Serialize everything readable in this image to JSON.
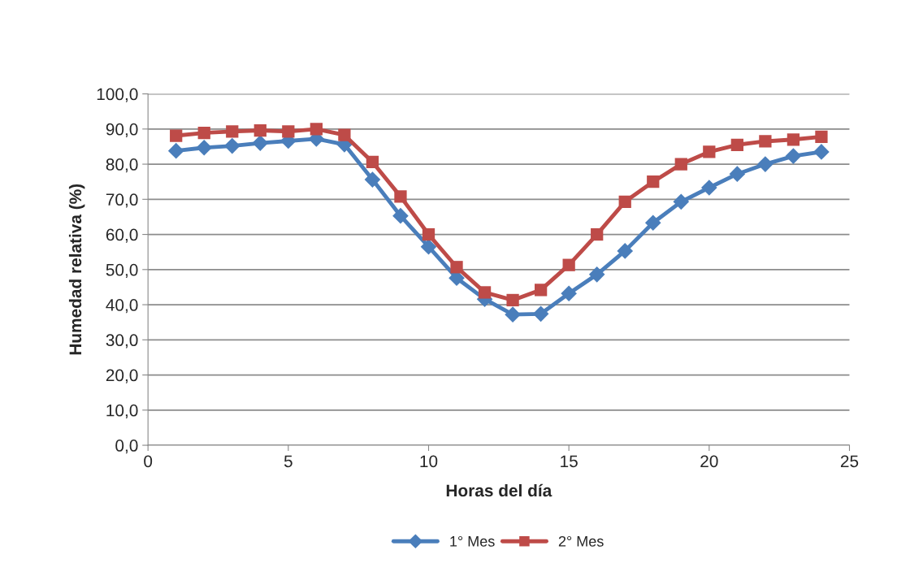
{
  "chart_data": {
    "type": "line",
    "xlabel": "Horas del día",
    "ylabel": "Humedad relativa (%)",
    "x": [
      1,
      2,
      3,
      4,
      5,
      6,
      7,
      8,
      9,
      10,
      11,
      12,
      13,
      14,
      15,
      16,
      17,
      18,
      19,
      20,
      21,
      22,
      23,
      24
    ],
    "series": [
      {
        "name": "1° Mes",
        "color": "#4a7ebb",
        "marker": "diamond",
        "values": [
          83.8,
          84.7,
          85.2,
          86.0,
          86.6,
          87.2,
          85.6,
          75.6,
          65.3,
          56.5,
          47.6,
          41.6,
          37.2,
          37.4,
          43.2,
          48.6,
          55.3,
          63.3,
          69.3,
          73.3,
          77.2,
          80.0,
          82.3,
          83.5
        ]
      },
      {
        "name": "2° Mes",
        "color": "#be4b48",
        "marker": "square",
        "values": [
          88.1,
          88.9,
          89.3,
          89.6,
          89.3,
          90.0,
          88.3,
          80.6,
          70.8,
          60.0,
          50.7,
          43.5,
          41.3,
          44.2,
          51.3,
          60.0,
          69.3,
          75.0,
          80.0,
          83.5,
          85.5,
          86.5,
          87.0,
          87.8
        ]
      }
    ],
    "xlim": [
      0,
      25
    ],
    "xticks": [
      0,
      5,
      10,
      15,
      20,
      25
    ],
    "ylim": [
      0,
      100
    ],
    "yticks": [
      {
        "value": 0,
        "label": "0,0"
      },
      {
        "value": 10,
        "label": "10,0"
      },
      {
        "value": 20,
        "label": "20,0"
      },
      {
        "value": 30,
        "label": "30,0"
      },
      {
        "value": 40,
        "label": "40,0"
      },
      {
        "value": 50,
        "label": "50,0"
      },
      {
        "value": 60,
        "label": "60,0"
      },
      {
        "value": 70,
        "label": "70,0"
      },
      {
        "value": 80,
        "label": "80,0"
      },
      {
        "value": 90,
        "label": "90,0"
      },
      {
        "value": 100,
        "label": "100,0"
      }
    ],
    "grid": "y",
    "legend": "bottom",
    "line_style": "solid"
  }
}
